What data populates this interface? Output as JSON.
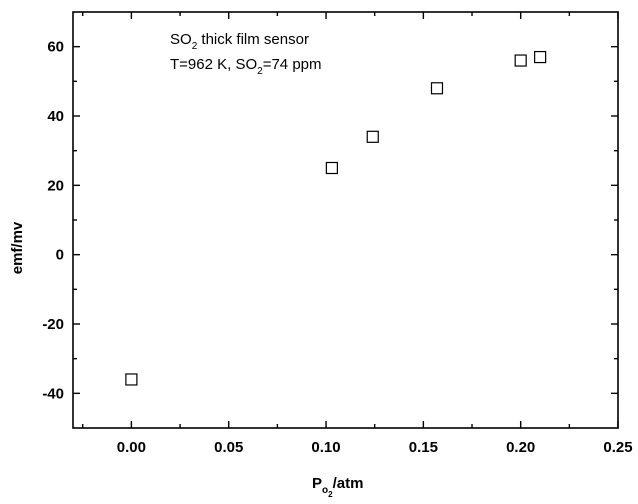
{
  "chart_data": {
    "type": "scatter",
    "x": [
      0.0,
      0.103,
      0.124,
      0.157,
      0.2,
      0.21
    ],
    "y": [
      -36,
      25,
      34,
      48,
      56,
      57
    ],
    "xlim": [
      -0.03,
      0.25
    ],
    "ylim": [
      -50,
      70
    ],
    "xticks": [
      "0.00",
      "0.05",
      "0.10",
      "0.15",
      "0.20",
      "0.25"
    ],
    "xtick_values": [
      0.0,
      0.05,
      0.1,
      0.15,
      0.2,
      0.25
    ],
    "yticks": [
      "-40",
      "-20",
      "0",
      "20",
      "40",
      "60"
    ],
    "ytick_values": [
      -40,
      -20,
      0,
      20,
      40,
      60
    ],
    "ylabel": "emf/mv",
    "xlabel": {
      "main": "P",
      "sub_o": "o",
      "sub_2": "2",
      "rest": "/atm"
    },
    "annotation": {
      "line1_a": "SO",
      "line1_sub": "2",
      "line1_b": " thick film sensor",
      "line2_a": "T=962 K, SO",
      "line2_sub": "2",
      "line2_b": "=74 ppm"
    },
    "marker": "open-square",
    "grid": false,
    "mirror_ticks": true
  }
}
